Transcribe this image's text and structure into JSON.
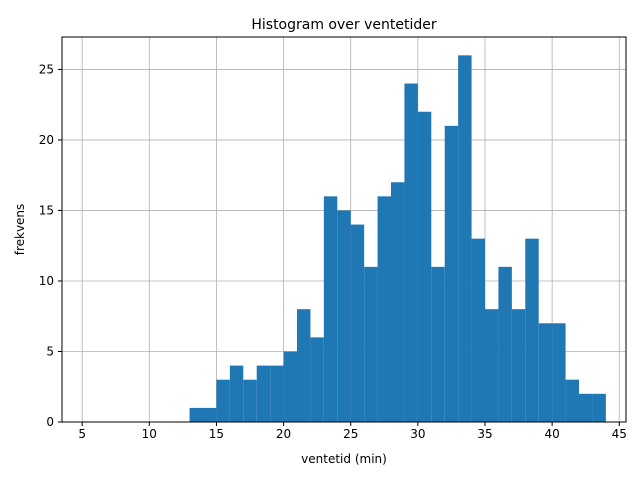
{
  "chart_data": {
    "type": "bar",
    "title": "Histogram over ventetider",
    "xlabel": "ventetid (min)",
    "ylabel": "frekvens",
    "xlim": [
      3.5,
      45.5
    ],
    "ylim": [
      0,
      27.3
    ],
    "xticks": [
      5,
      10,
      15,
      20,
      25,
      30,
      35,
      40,
      45
    ],
    "yticks": [
      0,
      5,
      10,
      15,
      20,
      25
    ],
    "grid": true,
    "bar_color": "#1f77b4",
    "bin_width": 1,
    "x": [
      13,
      14,
      15,
      16,
      17,
      18,
      19,
      20,
      21,
      22,
      23,
      24,
      25,
      26,
      27,
      28,
      29,
      30,
      31,
      32,
      33,
      34,
      35,
      36,
      37,
      38,
      39,
      40,
      41,
      42,
      43
    ],
    "values": [
      1,
      1,
      3,
      4,
      3,
      4,
      4,
      5,
      8,
      6,
      16,
      15,
      14,
      11,
      16,
      17,
      24,
      22,
      11,
      21,
      26,
      13,
      8,
      11,
      8,
      13,
      7,
      7,
      3,
      2,
      2
    ]
  }
}
